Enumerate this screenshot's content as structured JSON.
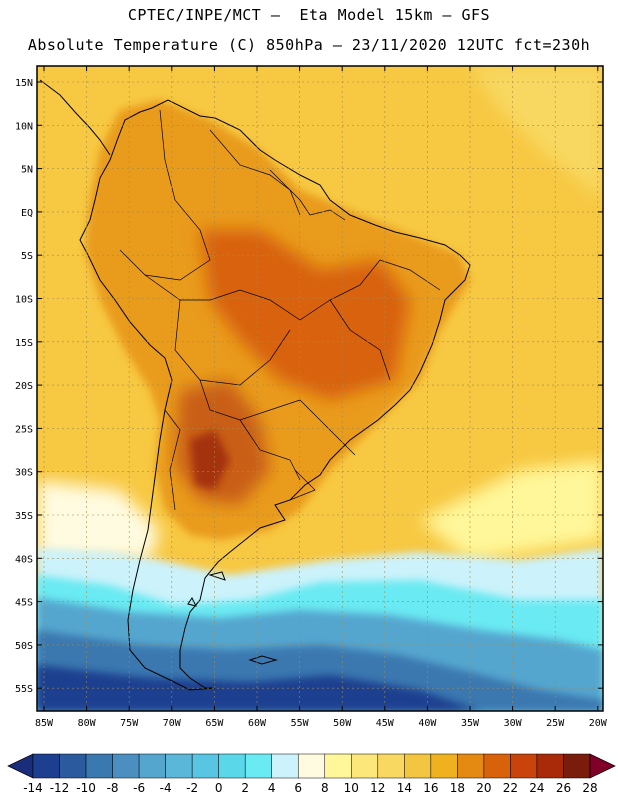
{
  "header": {
    "line1": "CPTEC/INPE/MCT –  Eta Model 15km – GFS",
    "line2": "Absolute Temperature (C) 850hPa – 23/11/2020 12UTC fct=230h"
  },
  "lat_labels": [
    "15N",
    "10N",
    "5N",
    "EQ",
    "5S",
    "10S",
    "15S",
    "20S",
    "25S",
    "30S",
    "35S",
    "40S",
    "45S",
    "50S",
    "55S"
  ],
  "lon_labels": [
    "85W",
    "80W",
    "75W",
    "70W",
    "65W",
    "60W",
    "55W",
    "50W",
    "45W",
    "40W",
    "35W",
    "30W",
    "25W",
    "20W"
  ],
  "colorbar": {
    "labels": [
      "-14",
      "-12",
      "-10",
      "-8",
      "-6",
      "-4",
      "-2",
      "0",
      "2",
      "4",
      "6",
      "8",
      "10",
      "12",
      "14",
      "16",
      "18",
      "20",
      "22",
      "24",
      "26",
      "28"
    ],
    "colors": [
      "#1c3f8f",
      "#2b5a9e",
      "#3a78b0",
      "#4a8fc0",
      "#55a6cf",
      "#5bb7d9",
      "#58c6e3",
      "#5ad8ea",
      "#6aeaf2",
      "#ccf2fb",
      "#fffbe0",
      "#fff79a",
      "#fbe77a",
      "#f8d860",
      "#f2c640",
      "#efb21e",
      "#e48a12",
      "#d8620a",
      "#c8440a",
      "#a82a08",
      "#7a1c0c"
    ],
    "under_color": "#1a2d7a",
    "over_color": "#80002a"
  },
  "map": {
    "background_color": "#f7c842",
    "continent_color": "#e99b1e",
    "warm_core_color": "#c95e12",
    "hot_core_color": "#a4330e",
    "cold_sea_colors": [
      "#ccf2fb",
      "#6aeaf2",
      "#55a6cf",
      "#3a78b0",
      "#1c3f8f"
    ]
  }
}
